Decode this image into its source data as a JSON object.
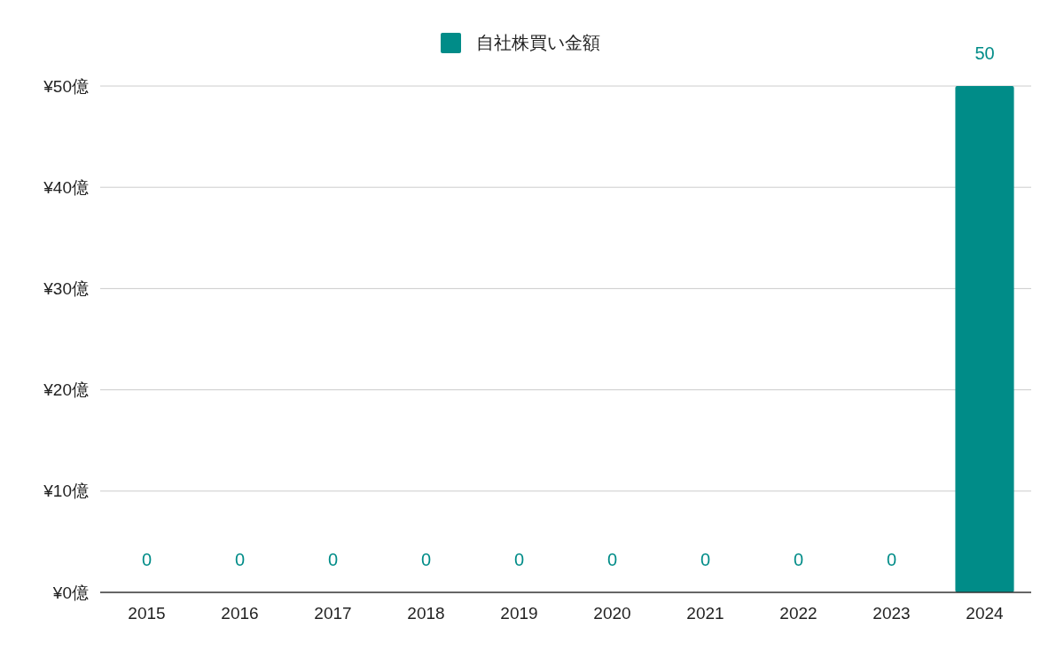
{
  "chart_data": {
    "type": "bar",
    "categories": [
      "2015",
      "2016",
      "2017",
      "2018",
      "2019",
      "2020",
      "2021",
      "2022",
      "2023",
      "2024"
    ],
    "series": [
      {
        "name": "自社株買い金額",
        "color": "#008c88",
        "values": [
          0,
          0,
          0,
          0,
          0,
          0,
          0,
          0,
          0,
          50
        ]
      }
    ],
    "ylim": [
      0,
      50
    ],
    "yticks": [
      {
        "value": 0,
        "label": "¥0億"
      },
      {
        "value": 10,
        "label": "¥10億"
      },
      {
        "value": 20,
        "label": "¥20億"
      },
      {
        "value": 30,
        "label": "¥30億"
      },
      {
        "value": 40,
        "label": "¥40億"
      },
      {
        "value": 50,
        "label": "¥50億"
      }
    ],
    "data_labels": true,
    "legend": "top",
    "grid": "y"
  }
}
